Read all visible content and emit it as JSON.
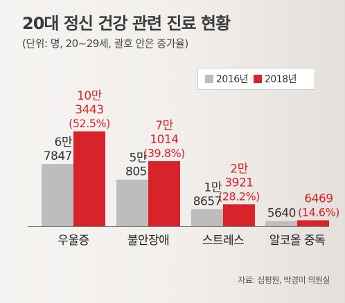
{
  "title": "20대 정신 건강 관련 진료 현황",
  "subtitle": "(단위: 명, 20~29세, 괄호 안은 증가율)",
  "source": "자료: 심평원, 박경미 의원실",
  "colors": {
    "y2016": "#bdbdbd",
    "y2018": "#d8232a",
    "growth": "#d8232a"
  },
  "chart_data": {
    "type": "bar",
    "categories": [
      "우울증",
      "불안장애",
      "스트레스",
      "알코올 중독"
    ],
    "series": [
      {
        "name": "2016년",
        "values": [
          67847,
          50805,
          18657,
          5640
        ],
        "labels": [
          [
            "6만",
            "7847"
          ],
          [
            "5만",
            "805"
          ],
          [
            "1만",
            "8657"
          ],
          [
            "5640"
          ]
        ]
      },
      {
        "name": "2018년",
        "values": [
          103443,
          71014,
          23921,
          6469
        ],
        "labels": [
          [
            "10만",
            "3443"
          ],
          [
            "7만",
            "1014"
          ],
          [
            "2만",
            "3921"
          ],
          [
            "6469"
          ]
        ]
      }
    ],
    "growth": [
      "(52.5%)",
      "(39.8%)",
      "(28.2%)",
      "(14.6%)"
    ],
    "legend_position": "top-right",
    "ylim": [
      0,
      103443
    ],
    "grid": false
  }
}
